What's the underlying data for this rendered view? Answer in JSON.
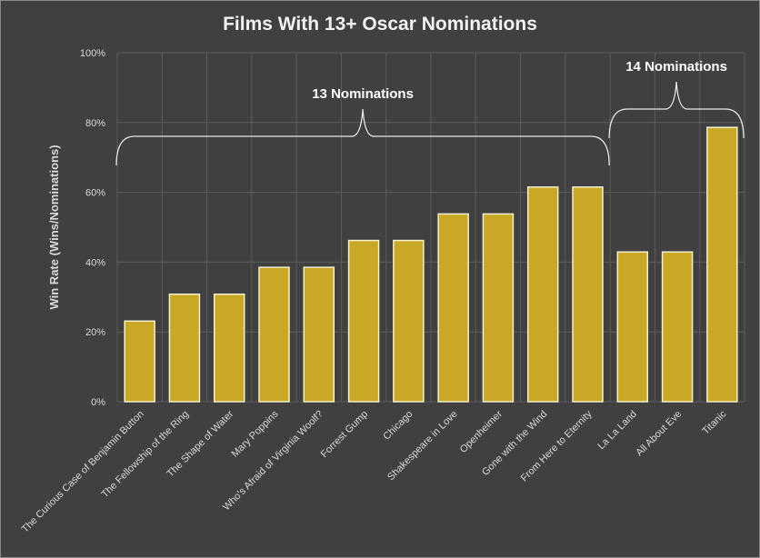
{
  "chart_data": {
    "type": "bar",
    "title": "Films With 13+ Oscar Nominations",
    "ylabel": "Win Rate (Wins/Nominations)",
    "xlabel": "",
    "ylim": [
      0,
      100
    ],
    "ytick_values": [
      0,
      20,
      40,
      60,
      80,
      100
    ],
    "ytick_labels": [
      "0%",
      "20%",
      "40%",
      "60%",
      "80%",
      "100%"
    ],
    "categories": [
      "The Curious Case of Benjamin Button",
      "The Fellowship of the Ring",
      "The Shape of Water",
      "Mary Poppins",
      "Who's Afraid of Virginia Woolf?",
      "Forrest Gump",
      "Chicago",
      "Shakespeare in Love",
      "Openheimer",
      "Gone with the Wind",
      "From Here to Eternity",
      "La La Land",
      "All About Eve",
      "Titanic"
    ],
    "values": [
      23.1,
      30.8,
      30.8,
      38.5,
      38.5,
      46.2,
      46.2,
      53.8,
      53.8,
      61.5,
      61.5,
      42.9,
      42.9,
      78.6
    ],
    "grid": true,
    "annotations": [
      {
        "text": "13 Nominations",
        "from_index": 0,
        "to_index": 10
      },
      {
        "text": "14 Nominations",
        "from_index": 11,
        "to_index": 13
      }
    ],
    "colors": {
      "bar": "#c9a825",
      "bar_edge": "#f5f0cc",
      "background": "#404040"
    }
  }
}
